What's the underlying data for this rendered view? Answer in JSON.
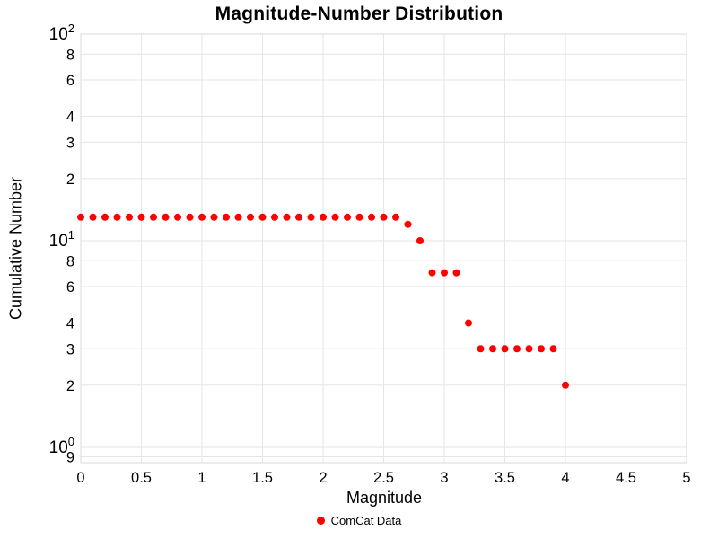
{
  "chart_data": {
    "type": "scatter",
    "title": "Magnitude-Number Distribution",
    "xlabel": "Magnitude",
    "ylabel": "Cumulative Number",
    "xlim": [
      0,
      5
    ],
    "y_scale": "log",
    "ylim_top": 100,
    "grid": true,
    "x_major_ticks": [
      0,
      0.5,
      1,
      1.5,
      2,
      2.5,
      3,
      3.5,
      4,
      4.5,
      5
    ],
    "x_tick_labels": [
      "0",
      "0.5",
      "1",
      "1.5",
      "2",
      "2.5",
      "3",
      "3.5",
      "4",
      "4.5",
      "5"
    ],
    "y_major_ticks": [
      {
        "value": 100,
        "base": "10",
        "exp": "2"
      },
      {
        "value": 10,
        "base": "10",
        "exp": "1"
      },
      {
        "value": 1,
        "base": "10",
        "exp": "0"
      }
    ],
    "y_minor_ticks": [
      {
        "value": 80,
        "label": "8"
      },
      {
        "value": 60,
        "label": "6"
      },
      {
        "value": 40,
        "label": "4"
      },
      {
        "value": 30,
        "label": "3"
      },
      {
        "value": 20,
        "label": "2"
      },
      {
        "value": 8,
        "label": "8"
      },
      {
        "value": 6,
        "label": "6"
      },
      {
        "value": 4,
        "label": "4"
      },
      {
        "value": 3,
        "label": "3"
      },
      {
        "value": 2,
        "label": "2"
      },
      {
        "value": 0.9,
        "label": "9"
      }
    ],
    "legend": {
      "position": "bottom-center",
      "entries": [
        {
          "label": "ComCat Data",
          "color": "#ff0000",
          "marker": "circle"
        }
      ]
    },
    "series": [
      {
        "name": "ComCat Data",
        "color": "#ff0000",
        "marker_radius": 4,
        "x": [
          0.0,
          0.1,
          0.2,
          0.3,
          0.4,
          0.5,
          0.6,
          0.7,
          0.8,
          0.9,
          1.0,
          1.1,
          1.2,
          1.3,
          1.4,
          1.5,
          1.6,
          1.7,
          1.8,
          1.9,
          2.0,
          2.1,
          2.2,
          2.3,
          2.4,
          2.5,
          2.6,
          2.7,
          2.8,
          2.9,
          3.0,
          3.1,
          3.2,
          3.3,
          3.4,
          3.5,
          3.6,
          3.7,
          3.8,
          3.9,
          4.0
        ],
        "y": [
          13,
          13,
          13,
          13,
          13,
          13,
          13,
          13,
          13,
          13,
          13,
          13,
          13,
          13,
          13,
          13,
          13,
          13,
          13,
          13,
          13,
          13,
          13,
          13,
          13,
          13,
          13,
          12,
          10,
          7,
          7,
          7,
          4,
          3,
          3,
          3,
          3,
          3,
          3,
          3,
          2
        ]
      }
    ],
    "colors": {
      "grid": "#e6e6e6",
      "plot_border": "#d9d9d9",
      "tick_text": "#000000",
      "background": "#ffffff"
    }
  }
}
